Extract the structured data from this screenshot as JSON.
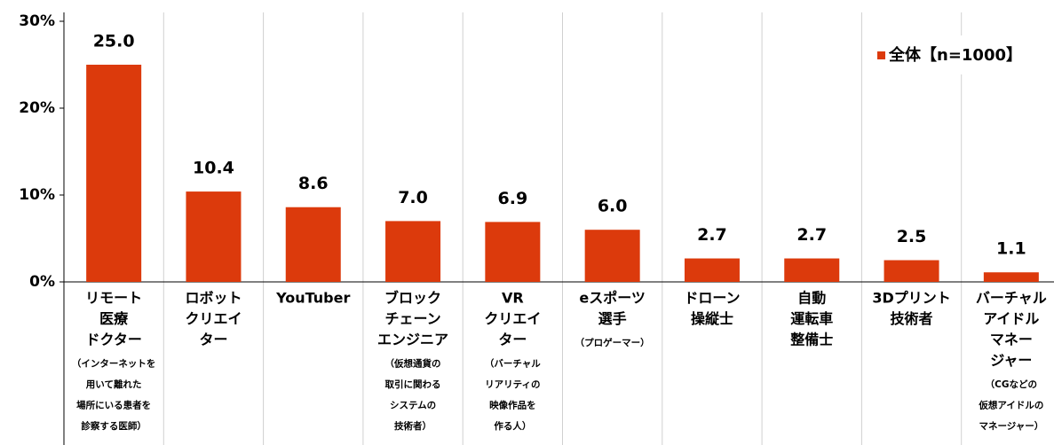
{
  "chart_data": {
    "type": "bar",
    "categories": [
      [
        "リモート",
        "医療",
        "ドクター"
      ],
      [
        "ロボット",
        "クリエイ",
        "ター"
      ],
      [
        "YouTuber"
      ],
      [
        "ブロック",
        "チェーン",
        "エンジニア"
      ],
      [
        "VR",
        "クリエイ",
        "ター"
      ],
      [
        "eスポーツ",
        "選手"
      ],
      [
        "ドローン",
        "操縦士"
      ],
      [
        "自動",
        "運転車",
        "整備士"
      ],
      [
        "3Dプリント",
        "技術者"
      ],
      [
        "バーチャル",
        "アイドル",
        "マネー",
        "ジャー"
      ]
    ],
    "category_notes": [
      [
        "（インターネットを",
        "用いて離れた",
        "場所にいる患者を",
        "診察する医師）"
      ],
      [],
      [],
      [
        "（仮想通貨の",
        "取引に関わる",
        "システムの",
        "技術者）"
      ],
      [
        "（バーチャル",
        "リアリティの",
        "映像作品を",
        "作る人）"
      ],
      [
        "（プロゲーマー）"
      ],
      [],
      [],
      [],
      [
        "（CGなどの",
        "仮想アイドルの",
        "マネージャー）"
      ]
    ],
    "series": [
      {
        "name": "全体【n=1000】",
        "color": "#dc3a0c",
        "values": [
          25.0,
          10.4,
          8.6,
          7.0,
          6.9,
          6.0,
          2.7,
          2.7,
          2.5,
          1.1
        ],
        "value_labels": [
          "25.0",
          "10.4",
          "8.6",
          "7.0",
          "6.9",
          "6.0",
          "2.7",
          "2.7",
          "2.5",
          "1.1"
        ]
      }
    ],
    "ylim": [
      0,
      30
    ],
    "yticks": [
      {
        "value": 0,
        "label": "0%"
      },
      {
        "value": 10,
        "label": "10%"
      },
      {
        "value": 20,
        "label": "20%"
      },
      {
        "value": 30,
        "label": "30%"
      }
    ],
    "legend": "top-right"
  }
}
